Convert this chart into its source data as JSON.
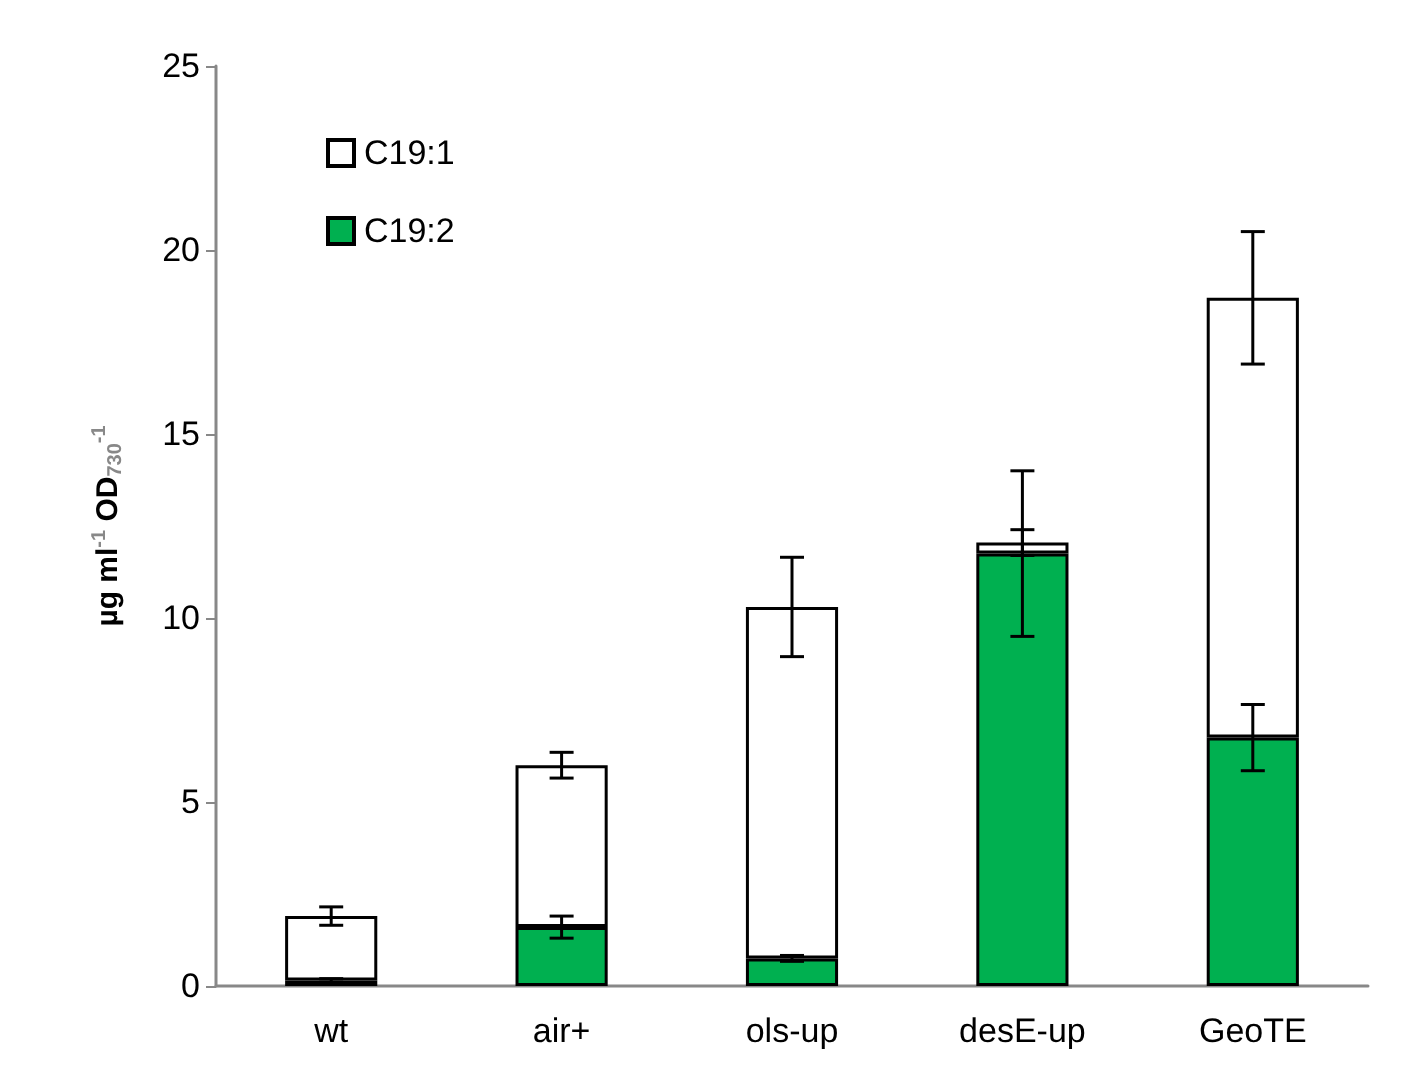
{
  "chart_data": {
    "type": "bar",
    "stacked": true,
    "ylabel": "µg ml$^{-1}$ OD$_{730}$$^{-1}$",
    "categories": [
      "wt",
      "air+",
      "ols-up",
      "desE-up",
      "GeoTE"
    ],
    "series": [
      {
        "name": "C19:2",
        "color": "#00b050",
        "values": [
          0.15,
          1.6,
          0.75,
          11.75,
          6.75
        ],
        "errors": [
          0.05,
          0.3,
          0.08,
          2.25,
          0.9
        ]
      },
      {
        "name": "C19:1",
        "color": "#ffffff",
        "values": [
          1.75,
          4.4,
          9.55,
          0.3,
          11.95
        ],
        "errors": [
          0.25,
          0.35,
          1.35,
          0.35,
          1.8
        ]
      }
    ],
    "ylim": [
      0,
      25
    ],
    "yticks": [
      0,
      5,
      10,
      15,
      20,
      25
    ],
    "grid": false,
    "legend": "top left"
  }
}
